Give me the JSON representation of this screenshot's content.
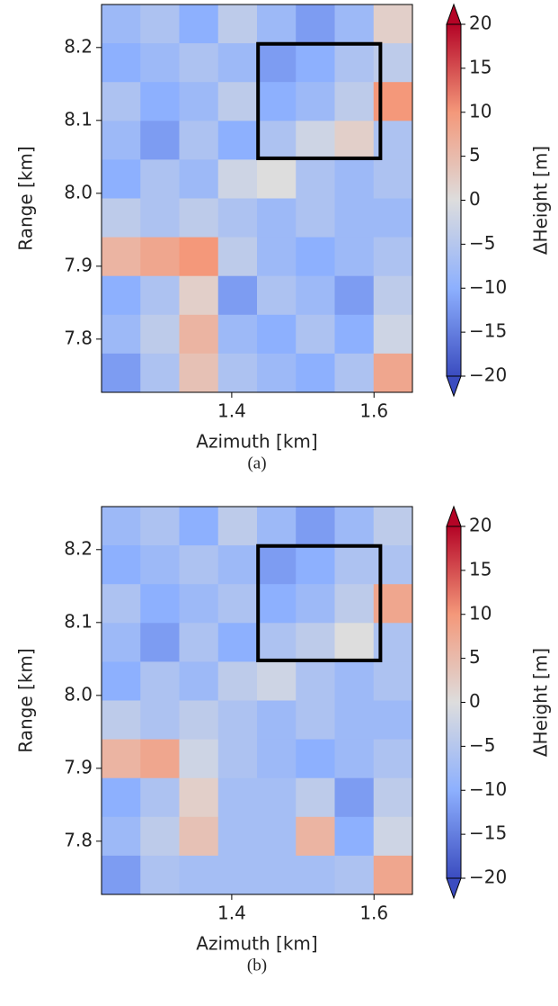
{
  "chart_data": [
    {
      "type": "heatmap",
      "caption": "(a)",
      "xlabel": "Azimuth [km]",
      "ylabel": "Range [km]",
      "colorbar_label": "ΔHeight [m]",
      "colormap": "coolwarm",
      "xlim": [
        1.217,
        1.654
      ],
      "ylim": [
        7.727,
        8.259
      ],
      "xticks": [
        1.4,
        1.6
      ],
      "yticks": [
        7.8,
        7.9,
        {
          "value": 8,
          "label": "8.0"
        },
        8.1,
        8.2
      ],
      "clim": [
        -20,
        20
      ],
      "cticks": [
        {
          "value": -20,
          "label": "−20"
        },
        {
          "value": -15,
          "label": "−15"
        },
        {
          "value": -10,
          "label": "−10"
        },
        {
          "value": -5,
          "label": "−5"
        },
        0,
        5,
        10,
        15,
        20
      ],
      "box": {
        "x": [
          1.437,
          1.609
        ],
        "y": [
          8.048,
          8.205
        ]
      },
      "z": [
        [
          -8,
          -6,
          -10,
          -4,
          -8,
          -12,
          -8,
          2
        ],
        [
          -10,
          -8,
          -6,
          -8,
          -12,
          -10,
          -6,
          -4
        ],
        [
          -6,
          -10,
          -8,
          -4,
          -10,
          -8,
          -4,
          10
        ],
        [
          -8,
          -12,
          -6,
          -10,
          -6,
          -2,
          2,
          -6
        ],
        [
          -10,
          -6,
          -8,
          -2,
          0,
          -6,
          -8,
          -6
        ],
        [
          -4,
          -6,
          -4,
          -6,
          -8,
          -6,
          -8,
          -8
        ],
        [
          6,
          8,
          10,
          -4,
          -8,
          -10,
          -8,
          -6
        ],
        [
          -10,
          -6,
          2,
          -12,
          -6,
          -8,
          -12,
          -4
        ],
        [
          -8,
          -4,
          6,
          -8,
          -10,
          -6,
          -10,
          -2
        ],
        [
          -12,
          -6,
          4,
          -6,
          -8,
          -10,
          -6,
          8
        ]
      ]
    },
    {
      "type": "heatmap",
      "caption": "(b)",
      "xlabel": "Azimuth [km]",
      "ylabel": "Range [km]",
      "colorbar_label": "ΔHeight [m]",
      "colormap": "coolwarm",
      "xlim": [
        1.217,
        1.654
      ],
      "ylim": [
        7.727,
        8.259
      ],
      "xticks": [
        1.4,
        1.6
      ],
      "yticks": [
        7.8,
        7.9,
        {
          "value": 8,
          "label": "8.0"
        },
        8.1,
        8.2
      ],
      "clim": [
        -20,
        20
      ],
      "cticks": [
        {
          "value": -20,
          "label": "−20"
        },
        {
          "value": -15,
          "label": "−15"
        },
        {
          "value": -10,
          "label": "−10"
        },
        {
          "value": -5,
          "label": "−5"
        },
        0,
        5,
        10,
        15,
        20
      ],
      "box": {
        "x": [
          1.437,
          1.609
        ],
        "y": [
          8.048,
          8.205
        ]
      },
      "z": [
        [
          -8,
          -6,
          -10,
          -4,
          -8,
          -12,
          -8,
          -4
        ],
        [
          -10,
          -8,
          -6,
          -8,
          -12,
          -10,
          -6,
          -6
        ],
        [
          -6,
          -10,
          -8,
          -6,
          -10,
          -8,
          -4,
          8
        ],
        [
          -8,
          -12,
          -6,
          -10,
          -6,
          -4,
          0,
          -6
        ],
        [
          -10,
          -6,
          -8,
          -4,
          -2,
          -6,
          -8,
          -6
        ],
        [
          -4,
          -6,
          -4,
          -6,
          -8,
          -6,
          -8,
          -8
        ],
        [
          6,
          8,
          -2,
          -6,
          -8,
          -10,
          -8,
          -6
        ],
        [
          -10,
          -6,
          2,
          -7,
          -7,
          -4,
          -12,
          -4
        ],
        [
          -8,
          -4,
          4,
          -7,
          -7,
          6,
          -10,
          -2
        ],
        [
          -12,
          -6,
          -7,
          -7,
          -7,
          -7,
          -6,
          8
        ]
      ]
    }
  ]
}
